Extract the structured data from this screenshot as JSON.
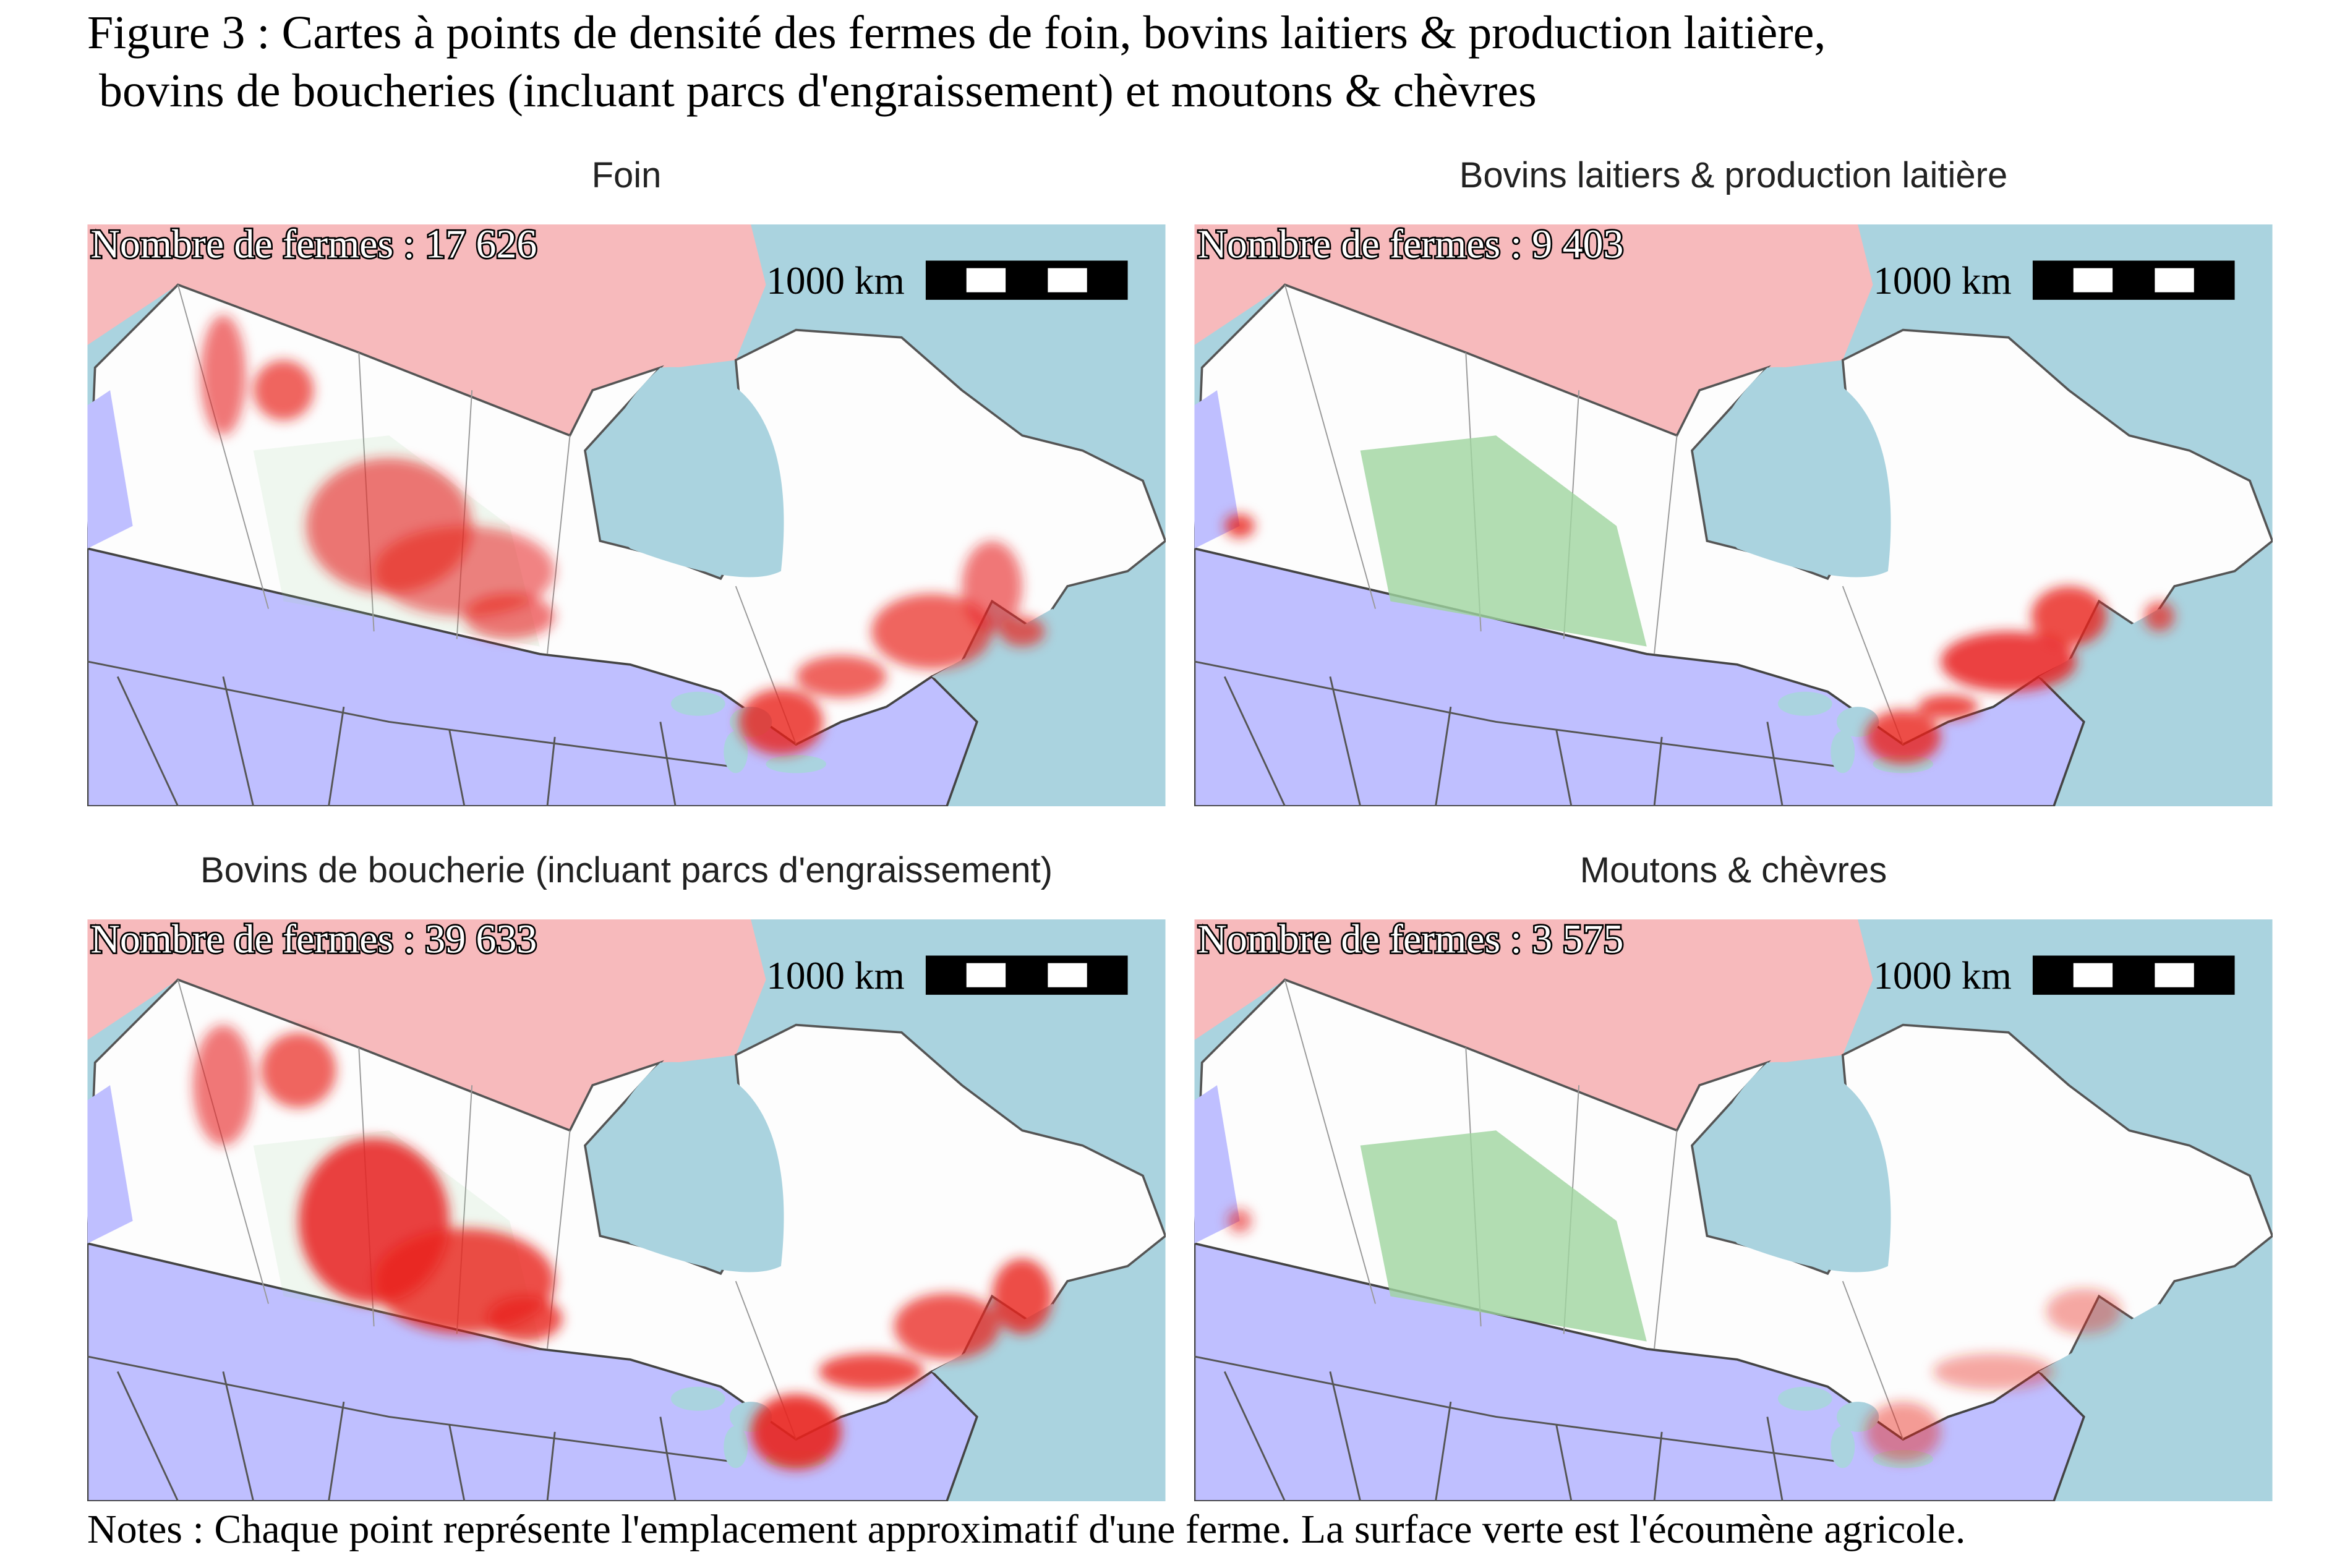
{
  "title": [
    "Figure 3 : Cartes à points de densité des fermes de foin, bovins laitiers & production laitière,",
    " bovins de boucheries (incluant parcs d'engraissement) et moutons & chèvres"
  ],
  "panels": [
    {
      "title": "Foin",
      "count_label": "Nombre de fermes : 17 626",
      "scale_label": "1000 km"
    },
    {
      "title": "Bovins laitiers & production laitière",
      "count_label": "Nombre de fermes : 9 403",
      "scale_label": "1000 km"
    },
    {
      "title": "Bovins de boucherie (incluant parcs d'engraissement)",
      "count_label": "Nombre de fermes : 39 633",
      "scale_label": "1000 km"
    },
    {
      "title": "Moutons & chèvres",
      "count_label": "Nombre de fermes : 3 575",
      "scale_label": "1000 km"
    }
  ],
  "notes": "Notes : Chaque point représente l'emplacement approximatif d'une ferme. La surface verte est l'écoumène agricole."
}
